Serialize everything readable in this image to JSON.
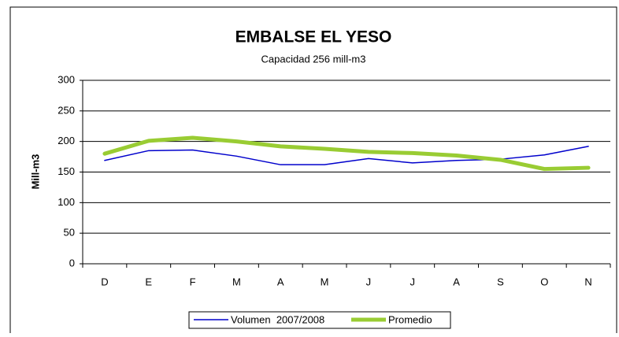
{
  "chart_data": {
    "type": "line",
    "title": "EMBALSE EL YESO",
    "subtitle": "Capacidad 256 mill-m3",
    "y_label": "Mill-m3",
    "categories": [
      "D",
      "E",
      "F",
      "M",
      "A",
      "M",
      "J",
      "J",
      "A",
      "S",
      "O",
      "N"
    ],
    "series": [
      {
        "name": "Volumen  2007/2008",
        "color": "#0000cc",
        "values": [
          169,
          185,
          186,
          176,
          162,
          162,
          172,
          165,
          169,
          171,
          178,
          192
        ]
      },
      {
        "name": "Promedio",
        "color": "#99cc33",
        "values": [
          180,
          201,
          206,
          200,
          192,
          188,
          183,
          181,
          177,
          170,
          155,
          157
        ]
      }
    ],
    "ylim": [
      0,
      300
    ],
    "yticks": [
      0,
      50,
      100,
      150,
      200,
      250,
      300
    ],
    "grid": true
  }
}
